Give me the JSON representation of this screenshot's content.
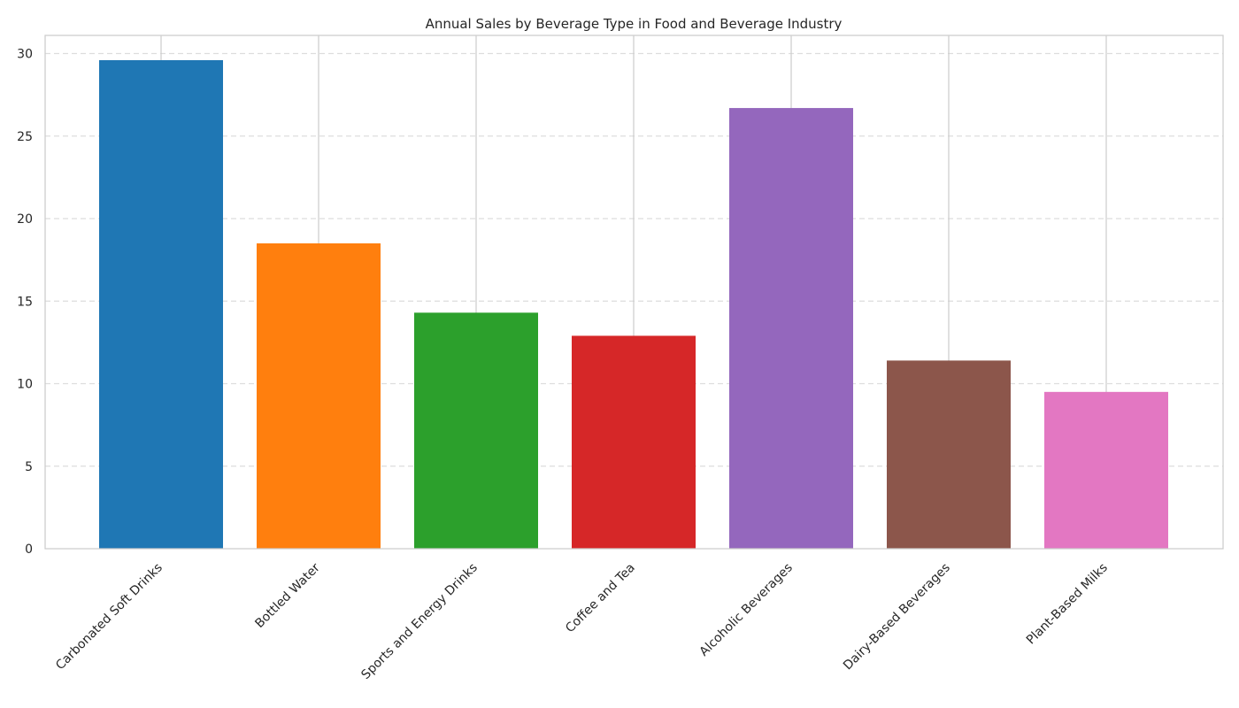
{
  "chart_data": {
    "type": "bar",
    "title": "Annual Sales by Beverage Type in Food and Beverage Industry",
    "xlabel": "",
    "ylabel": "",
    "categories": [
      "Carbonated Soft Drinks",
      "Bottled Water",
      "Sports and Energy Drinks",
      "Coffee and Tea",
      "Alcoholic Beverages",
      "Dairy-Based Beverages",
      "Plant-Based Milks"
    ],
    "values": [
      29.6,
      18.5,
      14.3,
      12.9,
      26.7,
      11.4,
      9.5
    ],
    "colors": [
      "#1f77b4",
      "#ff7f0e",
      "#2ca02c",
      "#d62728",
      "#9467bd",
      "#8c564b",
      "#e377c2"
    ],
    "ylim": [
      0,
      31.1
    ],
    "yticks": [
      0,
      5,
      10,
      15,
      20,
      25,
      30
    ],
    "grid": true,
    "legend": "none"
  }
}
